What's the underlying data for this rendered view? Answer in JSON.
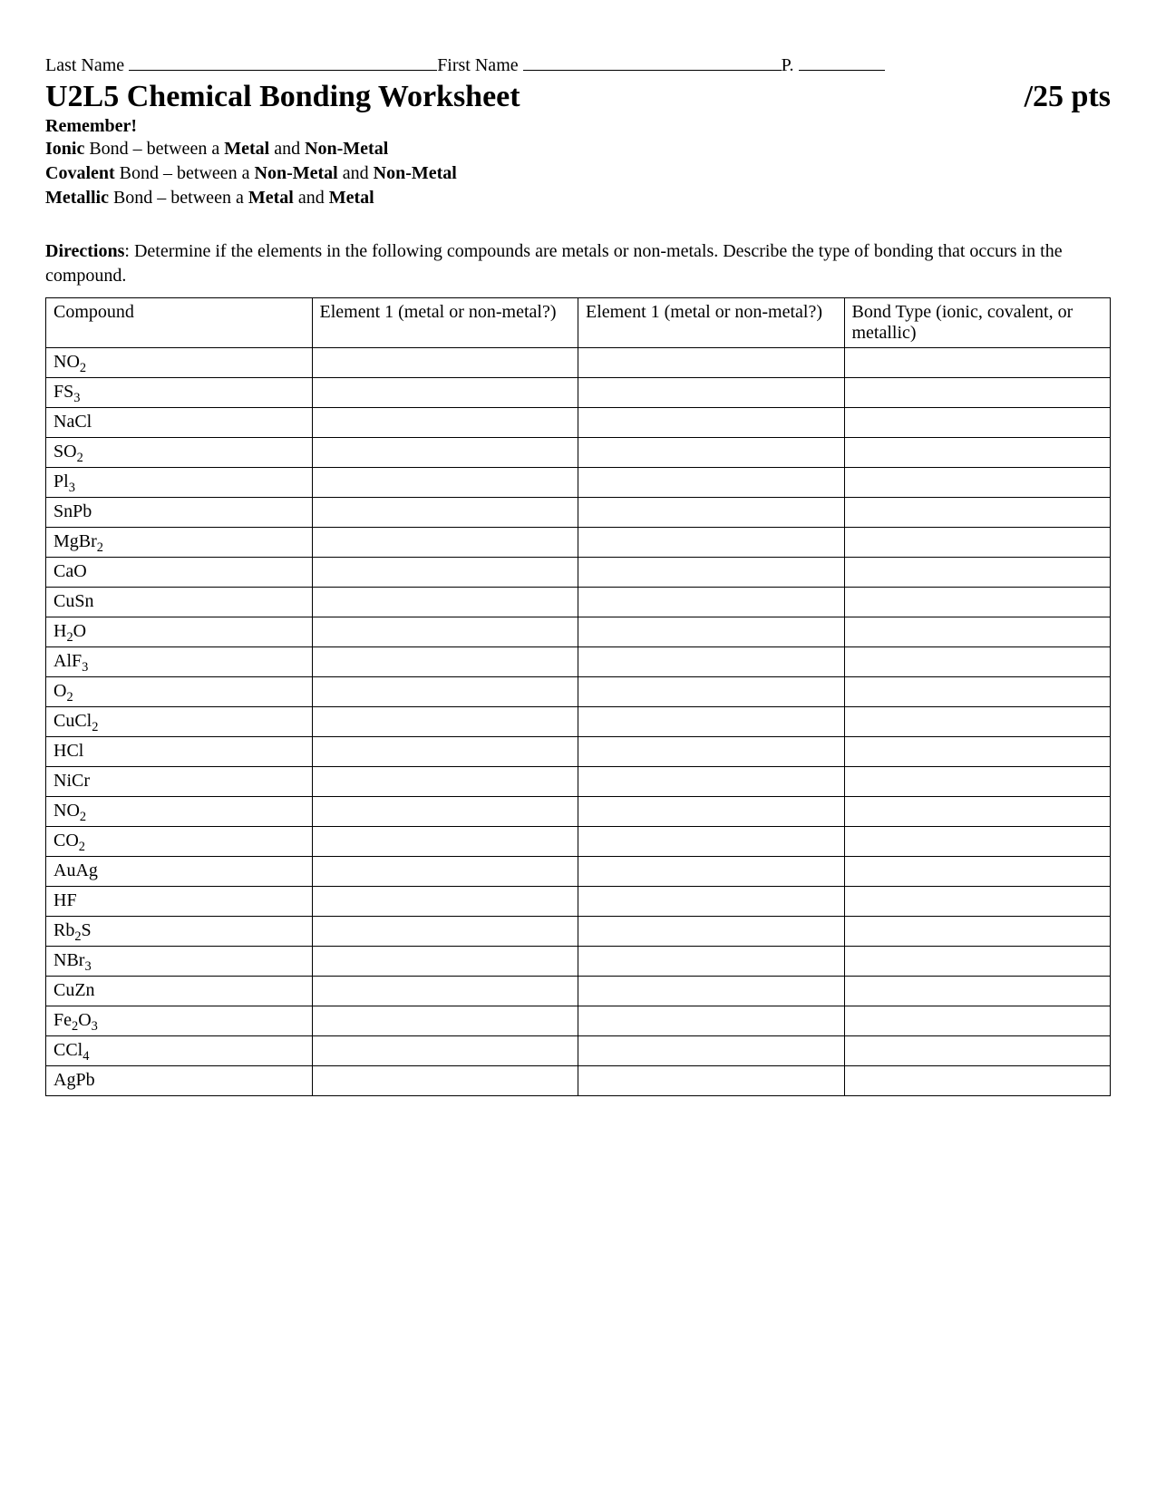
{
  "header": {
    "lastNameLabel": "Last Name",
    "firstNameLabel": "First Name",
    "periodLabel": "P."
  },
  "title": "U2L5 Chemical Bonding Worksheet",
  "points": "/25 pts",
  "rememberLabel": "Remember!",
  "bondDescriptions": [
    {
      "type": "Ionic",
      "mid": " Bond – between a ",
      "part1": "Metal",
      "and": " and ",
      "part2": "Non-Metal"
    },
    {
      "type": "Covalent",
      "mid": " Bond – between a ",
      "part1": "Non-Metal",
      "and": " and ",
      "part2": "Non-Metal"
    },
    {
      "type": "Metallic",
      "mid": " Bond – between a ",
      "part1": "Metal",
      "and": " and ",
      "part2": "Metal"
    }
  ],
  "directionsLabel": "Directions",
  "directionsText": ": Determine if the elements in the following compounds are metals or non-metals.  Describe the type of bonding that occurs in the compound.",
  "table": {
    "columns": [
      "Compound",
      "Element 1 (metal or non-metal?)",
      "Element 1 (metal or non-metal?)",
      "Bond Type (ionic, covalent, or metallic)"
    ],
    "rows": [
      {
        "base": "NO",
        "sub": "2"
      },
      {
        "base": "FS",
        "sub": "3"
      },
      {
        "base": "NaCl",
        "sub": ""
      },
      {
        "base": "SO",
        "sub": "2"
      },
      {
        "base": "Pl",
        "sub": "3"
      },
      {
        "base": "SnPb",
        "sub": ""
      },
      {
        "base": "MgBr",
        "sub": "2"
      },
      {
        "base": "CaO",
        "sub": ""
      },
      {
        "base": "CuSn",
        "sub": ""
      },
      {
        "base": "H",
        "sub": "2",
        "suffix": "O"
      },
      {
        "base": "AlF",
        "sub": "3"
      },
      {
        "base": "O",
        "sub": "2"
      },
      {
        "base": "CuCl",
        "sub": "2"
      },
      {
        "base": "HCl",
        "sub": ""
      },
      {
        "base": "NiCr",
        "sub": ""
      },
      {
        "base": "NO",
        "sub": "2"
      },
      {
        "base": "CO",
        "sub": "2"
      },
      {
        "base": "AuAg",
        "sub": ""
      },
      {
        "base": "HF",
        "sub": ""
      },
      {
        "base": "Rb",
        "sub": "2",
        "suffix": "S"
      },
      {
        "base": "NBr",
        "sub": "3"
      },
      {
        "base": "CuZn",
        "sub": ""
      },
      {
        "base": "Fe",
        "sub": "2",
        "suffix": "O",
        "sub2": "3"
      },
      {
        "base": "CCl",
        "sub": "4"
      },
      {
        "base": "AgPb",
        "sub": ""
      }
    ]
  }
}
